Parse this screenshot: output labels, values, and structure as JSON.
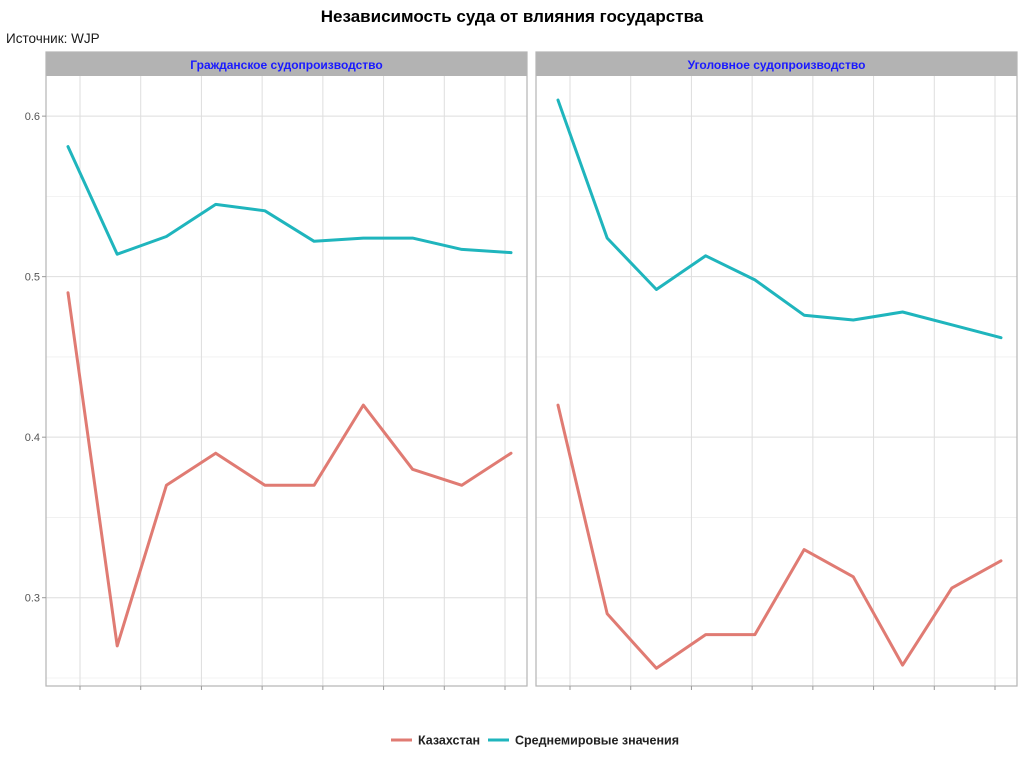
{
  "chart_data": {
    "type": "line",
    "title": "Независимость суда от влияния государства",
    "caption": "Источник: WJP",
    "xlabel": "",
    "ylabel": "",
    "ylim": [
      0.245,
      0.625
    ],
    "y_ticks": [
      0.3,
      0.4,
      0.5,
      0.6
    ],
    "y_tick_labels": [
      "0.3",
      "0.4",
      "0.5",
      "0.6"
    ],
    "grid": true,
    "legend_position": "bottom",
    "colors": {
      "Казахстан": "#e07b73",
      "Среднемировые значения": "#1fb5bd"
    },
    "panels": [
      {
        "name": "Гражданское судопроизводство",
        "series": [
          {
            "name": "Казахстан",
            "values": [
              0.49,
              0.27,
              0.37,
              0.39,
              0.37,
              0.37,
              0.42,
              0.38,
              0.37,
              0.39
            ]
          },
          {
            "name": "Среднемировые значения",
            "values": [
              0.581,
              0.514,
              0.525,
              0.545,
              0.541,
              0.522,
              0.524,
              0.524,
              0.517,
              0.515
            ]
          }
        ]
      },
      {
        "name": "Уголовное судопроизводство",
        "series": [
          {
            "name": "Казахстан",
            "values": [
              0.42,
              0.29,
              0.256,
              0.277,
              0.277,
              0.33,
              0.313,
              0.258,
              0.306,
              0.323
            ]
          },
          {
            "name": "Среднемировые значения",
            "values": [
              0.61,
              0.524,
              0.492,
              0.513,
              0.498,
              0.476,
              0.473,
              0.478,
              0.47,
              0.462
            ]
          }
        ]
      }
    ],
    "legend": [
      "Казахстан",
      "Среднемировые значения"
    ]
  }
}
